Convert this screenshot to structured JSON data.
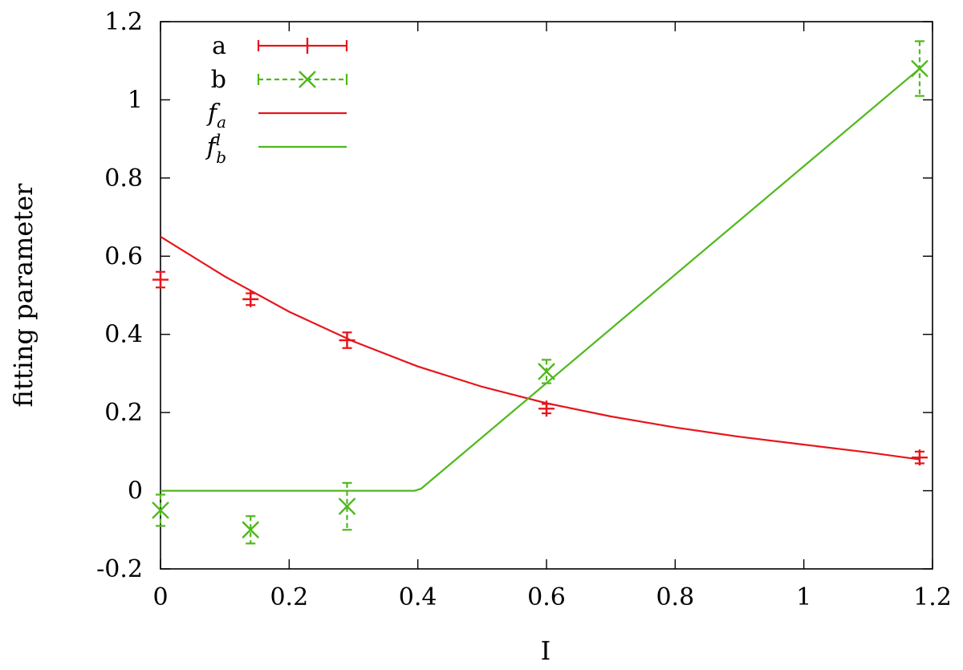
{
  "chart_data": {
    "type": "scatter",
    "xlabel": "I",
    "ylabel": "fitting parameter",
    "xlim": [
      0,
      1.2
    ],
    "ylim": [
      -0.2,
      1.2
    ],
    "xticks": [
      "0",
      "0.2",
      "0.4",
      "0.6",
      "0.8",
      "1",
      "1.2"
    ],
    "yticks": [
      "-0.2",
      "0",
      "0.2",
      "0.4",
      "0.6",
      "0.8",
      "1",
      "1.2"
    ],
    "grid": false,
    "legend_position": "top-left",
    "series": [
      {
        "name": "a",
        "kind": "points-with-errorbars",
        "marker": "plus",
        "line_style": "solid",
        "color": "#e8141b",
        "x": [
          0,
          0.14,
          0.29,
          0.6,
          1.18
        ],
        "y": [
          0.54,
          0.49,
          0.385,
          0.21,
          0.085
        ],
        "yerr": [
          0.02,
          0.015,
          0.02,
          0.012,
          0.015
        ]
      },
      {
        "name": "b",
        "kind": "points-with-errorbars",
        "marker": "cross",
        "line_style": "dashed",
        "color": "#4fb81d",
        "x": [
          0,
          0.14,
          0.29,
          0.6,
          1.18
        ],
        "y": [
          -0.05,
          -0.1,
          -0.04,
          0.305,
          1.08
        ],
        "yerr": [
          0.04,
          0.035,
          0.06,
          0.03,
          0.07
        ]
      },
      {
        "name": "f_a",
        "legend_symbol": "f",
        "legend_sub": "a",
        "legend_sup": "",
        "kind": "curve",
        "color": "#e8141b",
        "x": [
          0,
          0.1,
          0.2,
          0.3,
          0.4,
          0.5,
          0.6,
          0.7,
          0.8,
          0.9,
          1.0,
          1.1,
          1.18
        ],
        "y": [
          0.65,
          0.548,
          0.458,
          0.382,
          0.318,
          0.266,
          0.224,
          0.19,
          0.162,
          0.138,
          0.118,
          0.098,
          0.08
        ]
      },
      {
        "name": "f_b^l",
        "legend_symbol": "f",
        "legend_sub": "b",
        "legend_sup": "l",
        "kind": "curve",
        "color": "#4fb81d",
        "x": [
          0,
          0.395,
          0.405,
          1.18
        ],
        "y": [
          0,
          0,
          0.005,
          1.08
        ]
      }
    ]
  }
}
